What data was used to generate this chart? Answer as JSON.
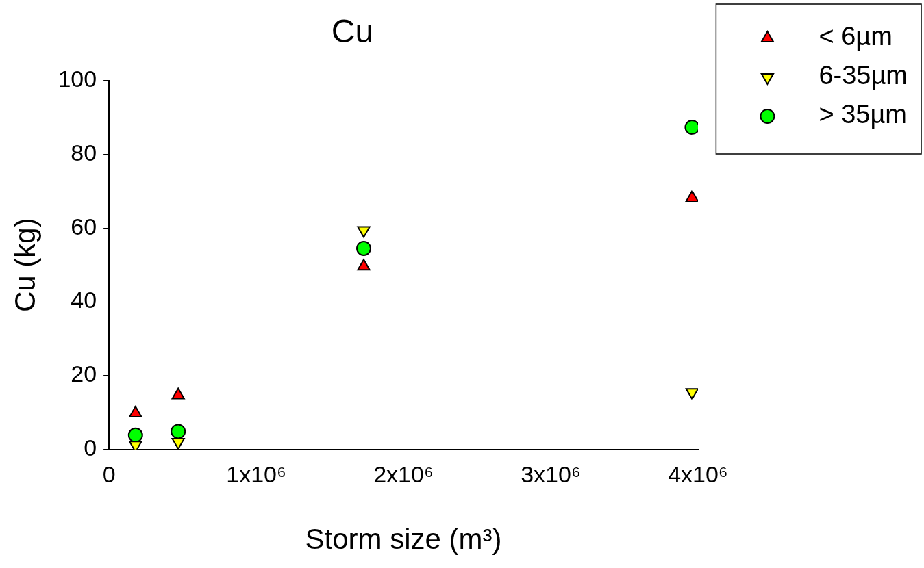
{
  "chart_data": {
    "type": "scatter",
    "title": "Cu",
    "xlabel": "Storm size (m³)",
    "ylabel": "Cu (kg)",
    "xlim": [
      0,
      4000000
    ],
    "xticks": [
      0,
      {
        "value": 1000000,
        "label": "1x10⁶"
      },
      {
        "value": 2000000,
        "label": "2x10⁶"
      },
      {
        "value": 3000000,
        "label": "3x10⁶"
      },
      {
        "value": 4000000,
        "label": "4x10⁶"
      }
    ],
    "ylim": [
      0,
      100
    ],
    "yticks": [
      0,
      20,
      40,
      60,
      80,
      100
    ],
    "grid": false,
    "legend": "top right",
    "series": [
      {
        "name": "< 6µm",
        "color": "#ff0000",
        "marker": "triangle",
        "x": [
          180000,
          470000,
          1730000,
          3960000
        ],
        "values": [
          9.8,
          14.7,
          49.6,
          68.2
        ]
      },
      {
        "name": "6-35µm",
        "color": "#ffff00",
        "marker": "triangle-down",
        "x": [
          180000,
          470000,
          1730000,
          3960000
        ],
        "values": [
          1.2,
          2,
          59.4,
          15.5
        ]
      },
      {
        "name": "> 35µm",
        "color": "#00ff00",
        "marker": "circle",
        "x": [
          180000,
          470000,
          1730000,
          3960000
        ],
        "values": [
          3.9,
          4.9,
          54.5,
          87.3
        ]
      }
    ]
  }
}
